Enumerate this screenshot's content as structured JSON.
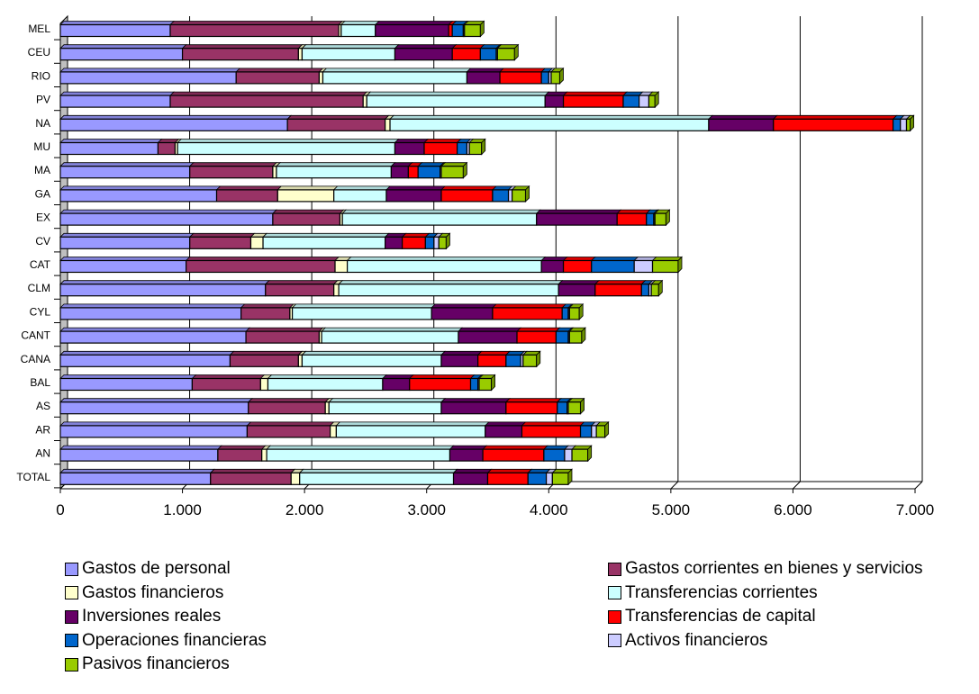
{
  "chart_data": {
    "type": "bar",
    "orientation": "horizontal",
    "stacked": true,
    "title": "",
    "xlabel": "",
    "ylabel": "",
    "xlim": [
      0,
      7000
    ],
    "x_ticks": [
      "0",
      "1.000",
      "2.000",
      "3.000",
      "4.000",
      "5.000",
      "6.000",
      "7.000"
    ],
    "grid": "vertical gridlines",
    "legend_position": "bottom",
    "categories": [
      "MEL",
      "CEU",
      "RIO",
      "PV",
      "NA",
      "MU",
      "MA",
      "GA",
      "EX",
      "CV",
      "CAT",
      "CLM",
      "CYL",
      "CANT",
      "CANA",
      "BAL",
      "AS",
      "AR",
      "AN",
      "TOTAL"
    ],
    "series": [
      {
        "name": "Gastos de personal",
        "color": "#9999ff",
        "values": [
          900,
          1000,
          1440,
          900,
          1860,
          800,
          1060,
          1280,
          1740,
          1060,
          1030,
          1680,
          1480,
          1520,
          1390,
          1080,
          1540,
          1530,
          1290,
          1230
        ]
      },
      {
        "name": "Gastos corrientes en bienes y servicios",
        "color": "#993366",
        "values": [
          1380,
          950,
          680,
          1580,
          800,
          140,
          680,
          500,
          550,
          500,
          1220,
          560,
          400,
          600,
          560,
          560,
          630,
          680,
          360,
          660
        ]
      },
      {
        "name": "Gastos financieros",
        "color": "#ffffcc",
        "values": [
          20,
          30,
          30,
          30,
          40,
          20,
          30,
          460,
          20,
          100,
          100,
          40,
          20,
          20,
          30,
          60,
          30,
          50,
          40,
          70
        ]
      },
      {
        "name": "Transferencias corrientes",
        "color": "#ccffff",
        "values": [
          280,
          760,
          1180,
          1460,
          2610,
          1780,
          940,
          430,
          1590,
          1000,
          1590,
          1800,
          1140,
          1120,
          1140,
          940,
          920,
          1220,
          1500,
          1260
        ]
      },
      {
        "name": "Inversiones reales",
        "color": "#660066",
        "values": [
          600,
          470,
          270,
          150,
          530,
          240,
          140,
          450,
          660,
          140,
          180,
          300,
          500,
          480,
          300,
          220,
          530,
          300,
          270,
          280
        ]
      },
      {
        "name": "Transferencias de capital",
        "color": "#ff0000",
        "values": [
          30,
          230,
          340,
          490,
          980,
          270,
          80,
          420,
          240,
          190,
          230,
          380,
          570,
          320,
          230,
          500,
          420,
          480,
          500,
          330
        ]
      },
      {
        "name": "Operaciones financieras",
        "color": "#0066cc",
        "values": [
          90,
          130,
          60,
          130,
          60,
          80,
          180,
          130,
          60,
          70,
          350,
          60,
          50,
          100,
          120,
          60,
          80,
          90,
          170,
          150
        ]
      },
      {
        "name": "Activos financieros",
        "color": "#ccccff",
        "values": [
          10,
          10,
          20,
          80,
          50,
          20,
          10,
          30,
          10,
          40,
          150,
          20,
          10,
          10,
          20,
          10,
          10,
          40,
          60,
          50
        ]
      },
      {
        "name": "Pasivos financieros",
        "color": "#99cc00",
        "values": [
          130,
          140,
          70,
          50,
          30,
          100,
          180,
          110,
          90,
          60,
          210,
          60,
          80,
          100,
          110,
          100,
          100,
          70,
          130,
          130
        ]
      }
    ]
  }
}
